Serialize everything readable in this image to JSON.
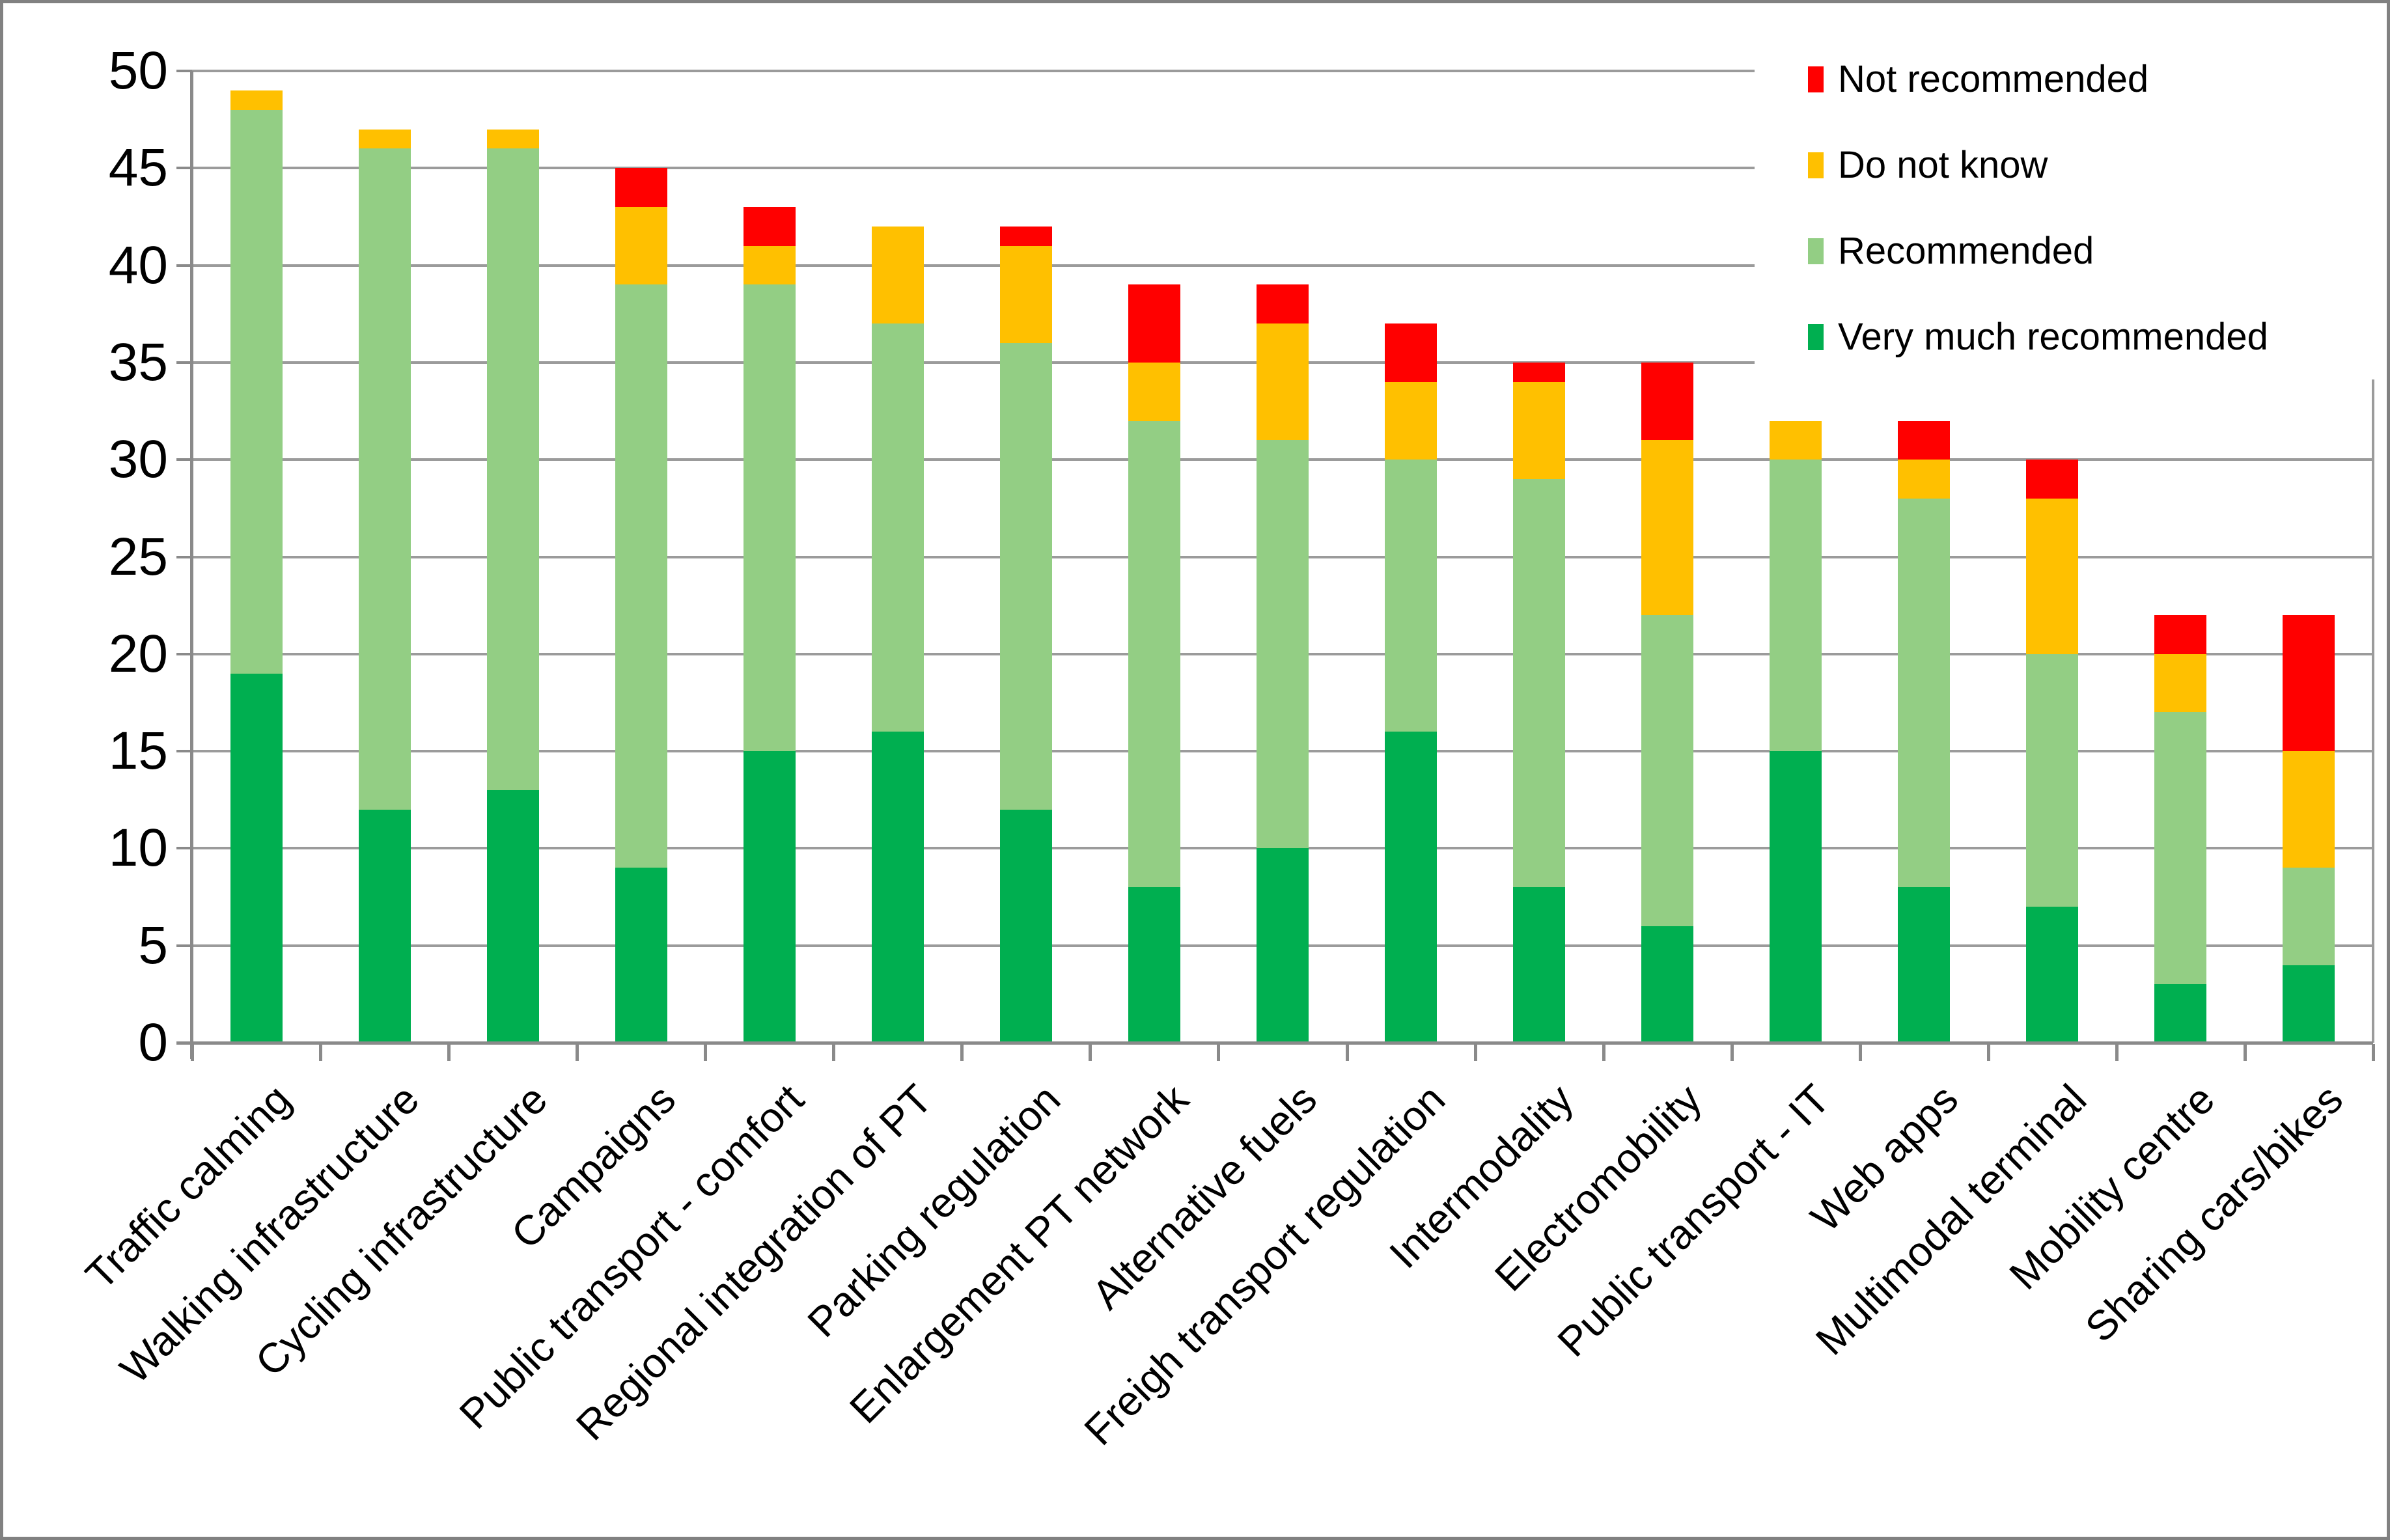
{
  "figure": {
    "background": "#FFFFFF",
    "border_color": "#818181"
  },
  "chart_data": {
    "type": "bar",
    "stacked": true,
    "title": "",
    "xlabel": "",
    "ylabel": "",
    "ylim": [
      0,
      50
    ],
    "ytick_step": 5,
    "y_ticks": [
      0,
      5,
      10,
      15,
      20,
      25,
      30,
      35,
      40,
      45,
      50
    ],
    "grid": true,
    "gridline_color": "#9B9B9B",
    "axis_color": "#8A8A8A",
    "legend_position": "top-right",
    "legend_order_top_to_bottom": [
      "Not recommended",
      "Do not know",
      "Recommended",
      "Very much recommended"
    ],
    "categories": [
      "Traffic calming",
      "Walking infrastructure",
      "Cycling infrastructure",
      "Campaigns",
      "Public transport - comfort",
      "Regional integration of PT",
      "Parking regulation",
      "Enlargement PT network",
      "Alternative fuels",
      "Freigh transport regulation",
      "Intermodality",
      "Electromobility",
      "Public transport - IT",
      "Web apps",
      "Multimodal terminal",
      "Mobility centre",
      "Sharing cars/bikes"
    ],
    "series": [
      {
        "name": "Very much recommended",
        "color": "#00AF50",
        "values": [
          19,
          12,
          13,
          9,
          15,
          16,
          12,
          8,
          10,
          16,
          8,
          6,
          15,
          8,
          7,
          3,
          4
        ]
      },
      {
        "name": "Recommended",
        "color": "#93CE84",
        "values": [
          29,
          34,
          33,
          30,
          24,
          21,
          24,
          24,
          21,
          14,
          21,
          16,
          15,
          20,
          13,
          14,
          5
        ]
      },
      {
        "name": "Do not know",
        "color": "#FFC000",
        "values": [
          1,
          1,
          1,
          4,
          2,
          5,
          5,
          3,
          6,
          4,
          5,
          9,
          2,
          2,
          8,
          3,
          6
        ]
      },
      {
        "name": "Not recommended",
        "color": "#FF0000",
        "values": [
          0,
          0,
          0,
          2,
          2,
          0,
          1,
          4,
          2,
          3,
          1,
          4,
          0,
          2,
          2,
          2,
          7
        ]
      }
    ],
    "totals": [
      49,
      47,
      47,
      45,
      43,
      42,
      42,
      39,
      39,
      37,
      35,
      35,
      32,
      32,
      30,
      22,
      22
    ]
  }
}
